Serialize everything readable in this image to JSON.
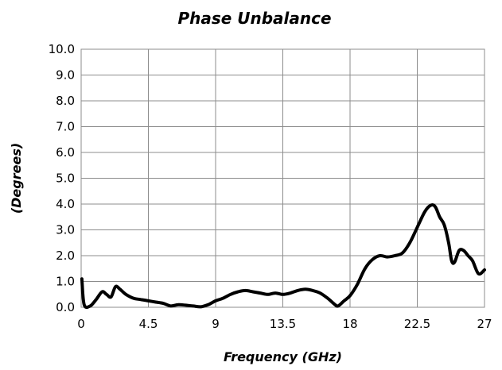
{
  "chart_data": {
    "type": "line",
    "title": "Phase Unbalance",
    "xlabel": "Frequency (GHz)",
    "ylabel": "(Degrees)",
    "xlim": [
      0,
      27
    ],
    "ylim": [
      0,
      10
    ],
    "x_ticks": [
      {
        "value": 0,
        "label": "0"
      },
      {
        "value": 4.5,
        "label": "4.5"
      },
      {
        "value": 9,
        "label": "9"
      },
      {
        "value": 13.5,
        "label": "13.5"
      },
      {
        "value": 18,
        "label": "18"
      },
      {
        "value": 22.5,
        "label": "22.5"
      },
      {
        "value": 27,
        "label": "27"
      }
    ],
    "y_ticks": [
      {
        "value": 0,
        "label": "0.0"
      },
      {
        "value": 1,
        "label": "1.0"
      },
      {
        "value": 2,
        "label": "2.0"
      },
      {
        "value": 3,
        "label": "3.0"
      },
      {
        "value": 4,
        "label": "4.0"
      },
      {
        "value": 5,
        "label": "5.0"
      },
      {
        "value": 6,
        "label": "6.0"
      },
      {
        "value": 7,
        "label": "7.0"
      },
      {
        "value": 8,
        "label": "8.0"
      },
      {
        "value": 9,
        "label": "9.0"
      },
      {
        "value": 10,
        "label": "10.0"
      }
    ],
    "grid": true,
    "series_color": "#000000",
    "series": [
      {
        "x": [
          0.05,
          0.2,
          0.6,
          1.0,
          1.4,
          1.7,
          2.0,
          2.3,
          2.6,
          3.0,
          3.5,
          4.0,
          4.5,
          5.0,
          5.5,
          6.0,
          6.5,
          7.0,
          7.5,
          8.0,
          8.5,
          9.0,
          9.5,
          10.0,
          10.5,
          11.0,
          11.5,
          12.0,
          12.5,
          13.0,
          13.5,
          14.0,
          14.5,
          15.0,
          15.5,
          16.0,
          16.5,
          17.0,
          17.2,
          17.6,
          18.0,
          18.5,
          19.0,
          19.5,
          20.0,
          20.5,
          21.0,
          21.5,
          22.0,
          22.5,
          23.0,
          23.4,
          23.7,
          24.0,
          24.3,
          24.6,
          24.8,
          25.0,
          25.3,
          25.6,
          25.9,
          26.2,
          26.6,
          27.0
        ],
        "y": [
          1.1,
          0.1,
          0.05,
          0.3,
          0.6,
          0.5,
          0.4,
          0.8,
          0.7,
          0.5,
          0.35,
          0.3,
          0.25,
          0.2,
          0.15,
          0.05,
          0.1,
          0.08,
          0.05,
          0.02,
          0.1,
          0.25,
          0.35,
          0.5,
          0.6,
          0.65,
          0.6,
          0.55,
          0.5,
          0.55,
          0.5,
          0.55,
          0.65,
          0.7,
          0.65,
          0.55,
          0.35,
          0.1,
          0.05,
          0.25,
          0.45,
          0.9,
          1.5,
          1.85,
          2.0,
          1.95,
          2.0,
          2.1,
          2.5,
          3.1,
          3.7,
          3.95,
          3.9,
          3.5,
          3.2,
          2.5,
          1.8,
          1.75,
          2.2,
          2.2,
          2.0,
          1.8,
          1.3,
          1.45
        ]
      }
    ]
  }
}
